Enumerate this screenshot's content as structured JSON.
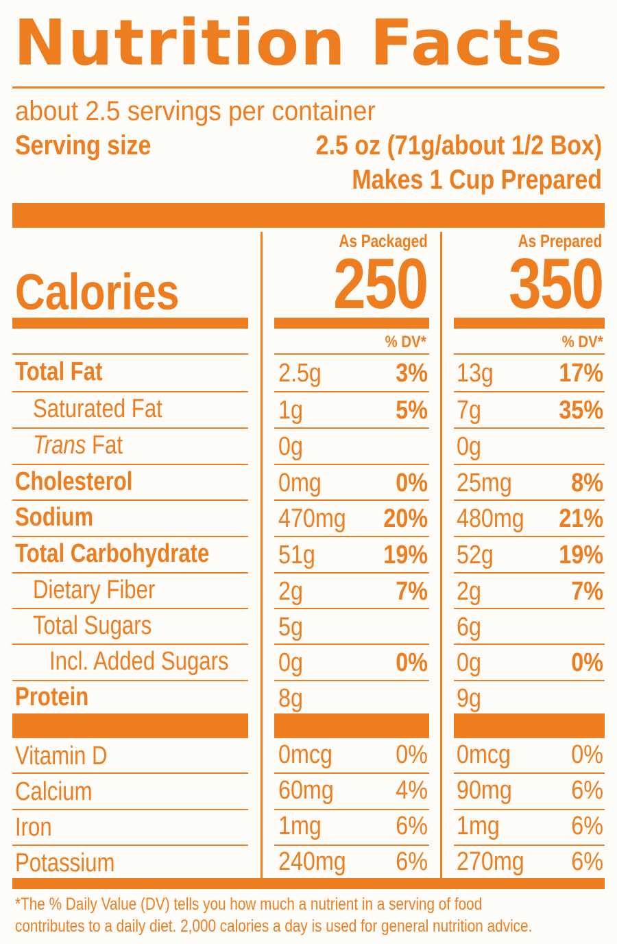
{
  "title": "Nutrition Facts",
  "servings_per_container": "about 2.5 servings per container",
  "serving_size_label": "Serving size",
  "serving_size_value": "2.5 oz (71g/about 1/2 Box)",
  "makes": "Makes 1 Cup Prepared",
  "columns": [
    {
      "heading": "As Packaged",
      "calories": "250",
      "dv_heading": "% DV*"
    },
    {
      "heading": "As Prepared",
      "calories": "350",
      "dv_heading": "% DV*"
    }
  ],
  "calories_label": "Calories",
  "nutrients": [
    {
      "label": "Total Fat",
      "packaged_amount": "2.5g",
      "packaged_dv": "3%",
      "prepared_amount": "13g",
      "prepared_dv": "17%"
    },
    {
      "label": "Saturated Fat",
      "packaged_amount": "1g",
      "packaged_dv": "5%",
      "prepared_amount": "7g",
      "prepared_dv": "35%"
    },
    {
      "label_italic": "Trans",
      "label_rest": " Fat",
      "packaged_amount": "0g",
      "packaged_dv": "",
      "prepared_amount": "0g",
      "prepared_dv": ""
    },
    {
      "label": "Cholesterol",
      "packaged_amount": "0mg",
      "packaged_dv": "0%",
      "prepared_amount": "25mg",
      "prepared_dv": "8%"
    },
    {
      "label": "Sodium",
      "packaged_amount": "470mg",
      "packaged_dv": "20%",
      "prepared_amount": "480mg",
      "prepared_dv": "21%"
    },
    {
      "label": "Total Carbohydrate",
      "packaged_amount": "51g",
      "packaged_dv": "19%",
      "prepared_amount": "52g",
      "prepared_dv": "19%"
    },
    {
      "label": "Dietary Fiber",
      "packaged_amount": "2g",
      "packaged_dv": "7%",
      "prepared_amount": "2g",
      "prepared_dv": "7%"
    },
    {
      "label": "Total Sugars",
      "packaged_amount": "5g",
      "packaged_dv": "",
      "prepared_amount": "6g",
      "prepared_dv": ""
    },
    {
      "label": "Incl. Added Sugars",
      "packaged_amount": "0g",
      "packaged_dv": "0%",
      "prepared_amount": "0g",
      "prepared_dv": "0%"
    },
    {
      "label": "Protein",
      "packaged_amount": "8g",
      "packaged_dv": "",
      "prepared_amount": "9g",
      "prepared_dv": ""
    }
  ],
  "vitamins": [
    {
      "label": "Vitamin D",
      "packaged_amount": "0mcg",
      "packaged_dv": "0%",
      "prepared_amount": "0mcg",
      "prepared_dv": "0%"
    },
    {
      "label": "Calcium",
      "packaged_amount": "60mg",
      "packaged_dv": "4%",
      "prepared_amount": "90mg",
      "prepared_dv": "6%"
    },
    {
      "label": "Iron",
      "packaged_amount": "1mg",
      "packaged_dv": "6%",
      "prepared_amount": "1mg",
      "prepared_dv": "6%"
    },
    {
      "label": "Potassium",
      "packaged_amount": "240mg",
      "packaged_dv": "6%",
      "prepared_amount": "270mg",
      "prepared_dv": "6%"
    }
  ],
  "footnote_line1": "*The % Daily Value (DV) tells you how much a nutrient in a serving of food",
  "footnote_line2": "contributes to a daily diet. 2,000 calories a day is used for general nutrition advice.",
  "colors": {
    "accent": "#ee7d1f",
    "background": "#fdfcf8"
  }
}
